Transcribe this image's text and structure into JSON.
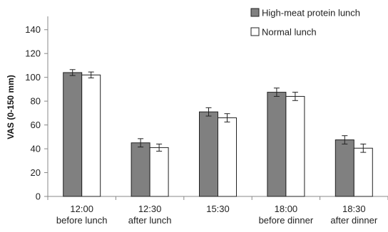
{
  "chart_data": {
    "type": "bar",
    "title": "",
    "ylabel": "VAS (0-150 mm)",
    "xlabel": "",
    "ylim": [
      0,
      150
    ],
    "yticks": [
      0,
      20,
      40,
      60,
      80,
      100,
      120,
      140
    ],
    "grid": false,
    "legend_position": "top-right",
    "categories": [
      [
        "12:00",
        "before lunch"
      ],
      [
        "12:30",
        "after lunch"
      ],
      [
        "15:30",
        ""
      ],
      [
        "18:00",
        "before dinner"
      ],
      [
        "18:30",
        "after dinner"
      ]
    ],
    "series": [
      {
        "name": "High-meat protein lunch",
        "color": "#808080",
        "values": [
          104,
          45,
          71,
          87.5,
          47.5
        ],
        "errors": [
          2.5,
          3.5,
          3.5,
          3.5,
          3.5
        ]
      },
      {
        "name": "Normal lunch",
        "color": "#ffffff",
        "values": [
          102,
          41,
          66,
          84,
          40.5
        ],
        "errors": [
          2.5,
          3,
          3.5,
          3.5,
          3.5
        ]
      }
    ]
  }
}
